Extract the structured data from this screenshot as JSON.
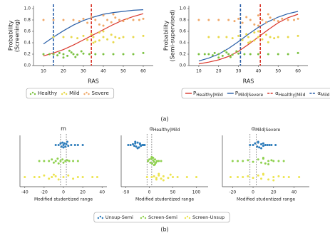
{
  "captions": [
    "(a)",
    "(b)"
  ],
  "shared_legend": [
    {
      "name": "Unsup-Semi",
      "color": "#2b7bba"
    },
    {
      "name": "Screen-Semi",
      "color": "#8fd14f"
    },
    {
      "name": "Screen-Unsup",
      "color": "#ece44f"
    }
  ],
  "chart_data": [
    {
      "type": "scatter",
      "xlabel": "RAS",
      "ylabel": [
        "Probability",
        "(Screening)"
      ],
      "xlim": [
        5,
        65
      ],
      "ylim": [
        0,
        1.05
      ],
      "xticks": [
        10,
        20,
        30,
        40,
        50,
        60
      ],
      "yticks": [
        {
          "value": 0,
          "label": "0.0"
        },
        {
          "value": 0.2,
          "label": "0.2"
        },
        {
          "value": 0.4,
          "label": "0.4"
        },
        {
          "value": 0.6,
          "label": "0.6"
        },
        {
          "value": 0.8,
          "label": "0.8"
        },
        {
          "value": 1,
          "label": "1.0"
        }
      ],
      "series": [
        {
          "type": "line",
          "color": "#d9372b",
          "x": [
            10,
            15,
            20,
            25,
            30,
            35,
            40,
            45,
            50,
            55,
            60
          ],
          "y": [
            0.17,
            0.22,
            0.28,
            0.36,
            0.45,
            0.54,
            0.63,
            0.72,
            0.8,
            0.86,
            0.91
          ]
        },
        {
          "type": "line",
          "color": "#2a5fa8",
          "x": [
            10,
            15,
            20,
            25,
            30,
            35,
            40,
            45,
            50,
            55,
            60
          ],
          "y": [
            0.38,
            0.5,
            0.61,
            0.71,
            0.79,
            0.85,
            0.9,
            0.93,
            0.95,
            0.97,
            0.98
          ]
        },
        {
          "name": "Healthy",
          "color": "#7cc242",
          "x": [
            10,
            13,
            15,
            17,
            18,
            20,
            22,
            24,
            25,
            27,
            30,
            33,
            36,
            40,
            45,
            50,
            55,
            60,
            20,
            23,
            26,
            29
          ],
          "y": [
            0.2,
            0.2,
            0.2,
            0.18,
            0.22,
            0.2,
            0.17,
            0.23,
            0.2,
            0.19,
            0.21,
            0.2,
            0.2,
            0.2,
            0.2,
            0.2,
            0.2,
            0.22,
            0.14,
            0.26,
            0.15,
            0.25
          ]
        },
        {
          "name": "Mild",
          "color": "#e8d84a",
          "x": [
            15,
            20,
            24,
            27,
            30,
            32,
            34,
            35,
            36,
            38,
            40,
            42,
            44,
            46,
            48,
            50,
            55,
            60,
            35,
            40,
            45,
            38
          ],
          "y": [
            0.5,
            0.5,
            0.5,
            0.48,
            0.52,
            0.45,
            0.55,
            0.5,
            0.42,
            0.58,
            0.5,
            0.46,
            0.54,
            0.5,
            0.48,
            0.5,
            0.5,
            0.52,
            0.4,
            0.6,
            0.41,
            0.44
          ]
        },
        {
          "name": "Severe",
          "color": "#f0a868",
          "x": [
            10,
            15,
            20,
            25,
            28,
            30,
            32,
            34,
            36,
            38,
            40,
            42,
            44,
            46,
            48,
            50,
            52,
            55,
            58,
            60,
            40,
            45
          ],
          "y": [
            0.8,
            0.8,
            0.8,
            0.8,
            0.78,
            0.82,
            0.75,
            0.85,
            0.8,
            0.72,
            0.88,
            0.8,
            0.76,
            0.84,
            0.8,
            0.78,
            0.82,
            0.8,
            0.8,
            0.82,
            0.7,
            0.9
          ]
        }
      ],
      "vlines": [
        {
          "x": 15,
          "color": "#2a5fa8"
        },
        {
          "x": 34,
          "color": "#d9372b"
        }
      ]
    },
    {
      "type": "scatter",
      "xlabel": "RAS",
      "ylabel": [
        "Probability",
        "(Semi-supervised)"
      ],
      "xlim": [
        5,
        65
      ],
      "ylim": [
        0,
        1.05
      ],
      "xticks": [
        10,
        20,
        30,
        40,
        50,
        60
      ],
      "yticks": [
        {
          "value": 0,
          "label": "0.0"
        },
        {
          "value": 0.2,
          "label": "0.2"
        },
        {
          "value": 0.4,
          "label": "0.4"
        },
        {
          "value": 0.6,
          "label": "0.6"
        },
        {
          "value": 0.8,
          "label": "0.8"
        },
        {
          "value": 1,
          "label": "1.0"
        }
      ],
      "series": [
        {
          "type": "line",
          "name": "P",
          "sub": "Healthy|Mild",
          "color": "#d9372b",
          "x": [
            10,
            15,
            20,
            25,
            30,
            35,
            40,
            45,
            50,
            55,
            60
          ],
          "y": [
            0.03,
            0.06,
            0.1,
            0.16,
            0.25,
            0.37,
            0.5,
            0.63,
            0.75,
            0.84,
            0.9
          ]
        },
        {
          "type": "line",
          "name": "P",
          "sub": "Mild|Severe",
          "color": "#2a5fa8",
          "x": [
            10,
            15,
            20,
            25,
            30,
            35,
            40,
            45,
            50,
            55,
            60
          ],
          "y": [
            0.08,
            0.13,
            0.2,
            0.3,
            0.42,
            0.55,
            0.67,
            0.77,
            0.85,
            0.91,
            0.95
          ]
        },
        {
          "color": "#7cc242",
          "x": [
            10,
            13,
            15,
            17,
            18,
            20,
            22,
            24,
            25,
            27,
            30,
            33,
            36,
            40,
            45,
            50,
            55,
            60,
            20,
            23,
            26,
            29
          ],
          "y": [
            0.2,
            0.2,
            0.2,
            0.18,
            0.22,
            0.2,
            0.17,
            0.23,
            0.2,
            0.19,
            0.21,
            0.2,
            0.2,
            0.2,
            0.2,
            0.2,
            0.2,
            0.22,
            0.14,
            0.26,
            0.15,
            0.25
          ]
        },
        {
          "color": "#e8d84a",
          "x": [
            15,
            20,
            24,
            27,
            30,
            32,
            34,
            35,
            36,
            38,
            40,
            42,
            44,
            46,
            48,
            50,
            55,
            60,
            35,
            40,
            45,
            38
          ],
          "y": [
            0.5,
            0.5,
            0.5,
            0.48,
            0.52,
            0.45,
            0.55,
            0.5,
            0.42,
            0.58,
            0.5,
            0.46,
            0.54,
            0.5,
            0.48,
            0.5,
            0.5,
            0.52,
            0.4,
            0.6,
            0.41,
            0.44
          ]
        },
        {
          "color": "#f0a868",
          "x": [
            10,
            15,
            20,
            25,
            28,
            30,
            32,
            34,
            36,
            38,
            40,
            42,
            44,
            46,
            48,
            50,
            52,
            55,
            58,
            60,
            40,
            45
          ],
          "y": [
            0.8,
            0.8,
            0.8,
            0.8,
            0.78,
            0.82,
            0.75,
            0.85,
            0.8,
            0.72,
            0.88,
            0.8,
            0.76,
            0.84,
            0.8,
            0.78,
            0.82,
            0.8,
            0.8,
            0.82,
            0.7,
            0.9
          ]
        }
      ],
      "vlines": [
        {
          "x": 41,
          "color": "#d9372b",
          "name": "α",
          "sub": "Healthy|Mild"
        },
        {
          "x": 31,
          "color": "#2a5fa8",
          "name": "α",
          "sub": "Mild|Severe"
        }
      ]
    },
    {
      "type": "scatter",
      "title": "m",
      "xlabel": "Modified studentized range",
      "xlim": [
        -45,
        45
      ],
      "ylim": [
        0.4,
        3.6
      ],
      "xticks": [
        -40,
        -20,
        0,
        20,
        40
      ],
      "series": [
        {
          "color": "#2b7bba",
          "x": [
            -5,
            -3,
            -2,
            -1,
            0,
            0,
            1,
            2,
            3,
            4,
            5,
            8,
            12,
            15,
            20,
            -8
          ],
          "y": [
            3,
            3.1,
            2.9,
            3.15,
            3,
            2.85,
            3.1,
            2.9,
            3.05,
            3.2,
            2.95,
            3,
            3,
            3,
            3,
            3
          ]
        },
        {
          "color": "#8fd14f",
          "x": [
            -20,
            -15,
            -12,
            -10,
            -8,
            -6,
            -5,
            -3,
            -1,
            0,
            2,
            4,
            6,
            10,
            15,
            -25
          ],
          "y": [
            2,
            2,
            2.1,
            1.9,
            2,
            2.15,
            1.85,
            2,
            2.1,
            1.9,
            2,
            2.05,
            2,
            2,
            2,
            2
          ]
        },
        {
          "color": "#ece44f",
          "x": [
            -40,
            -30,
            -25,
            -20,
            -15,
            -12,
            -10,
            -5,
            0,
            5,
            10,
            15,
            20,
            30,
            35,
            -8
          ],
          "y": [
            1,
            1,
            1,
            1.1,
            0.9,
            1,
            1.15,
            0.85,
            1,
            1.1,
            0.9,
            1,
            1,
            1,
            1,
            1.05
          ]
        }
      ],
      "vlines": [
        {
          "x": -3,
          "color": "#666"
        },
        {
          "x": 3,
          "color": "#666"
        }
      ]
    },
    {
      "type": "scatter",
      "title": "α",
      "title_sub": "Healthy|Mild",
      "xlabel": "Modified studentized range",
      "xlim": [
        -60,
        125
      ],
      "ylim": [
        0.4,
        3.6
      ],
      "xticks": [
        -50,
        0,
        50,
        100
      ],
      "series": [
        {
          "color": "#2b7bba",
          "x": [
            -45,
            -40,
            -35,
            -32,
            -30,
            -28,
            -25,
            -22,
            -20,
            -18,
            -15,
            -12,
            -10,
            -30,
            -25,
            -20
          ],
          "y": [
            3,
            3,
            3.05,
            2.95,
            3.1,
            2.9,
            3.15,
            2.85,
            3.05,
            2.95,
            3,
            3,
            3,
            3.2,
            2.8,
            3.1
          ]
        },
        {
          "color": "#8fd14f",
          "x": [
            -3,
            0,
            2,
            4,
            6,
            8,
            10,
            12,
            14,
            16,
            20,
            25,
            8,
            12,
            5,
            10
          ],
          "y": [
            2,
            2.1,
            1.9,
            2.15,
            1.85,
            2.05,
            1.95,
            2.1,
            1.9,
            2,
            2,
            2,
            2.2,
            1.8,
            2.25,
            1.75
          ]
        },
        {
          "color": "#ece44f",
          "x": [
            -5,
            5,
            10,
            15,
            20,
            25,
            30,
            40,
            50,
            60,
            80,
            100,
            20,
            30,
            45,
            15
          ],
          "y": [
            1,
            1,
            1.05,
            0.95,
            1.1,
            0.9,
            1.05,
            0.95,
            1,
            1,
            1,
            1,
            1.2,
            0.8,
            1.15,
            0.85
          ]
        }
      ],
      "vlines": [
        {
          "x": -5,
          "color": "#666"
        },
        {
          "x": 5,
          "color": "#666"
        }
      ]
    },
    {
      "type": "scatter",
      "title": "α",
      "title_sub": "Mild|Severe",
      "xlabel": "Modified studentized range",
      "xlim": [
        -30,
        55
      ],
      "ylim": [
        0.4,
        3.6
      ],
      "xticks": [
        -20,
        0,
        20,
        40
      ],
      "series": [
        {
          "color": "#2b7bba",
          "x": [
            -3,
            0,
            2,
            4,
            5,
            6,
            8,
            10,
            12,
            14,
            16,
            18,
            22,
            5,
            8,
            10
          ],
          "y": [
            3,
            3,
            3.1,
            2.9,
            3.15,
            2.85,
            3.05,
            2.95,
            3,
            3,
            3,
            3,
            3,
            3.2,
            2.8,
            3.1
          ]
        },
        {
          "color": "#8fd14f",
          "x": [
            -20,
            -15,
            -10,
            -5,
            0,
            5,
            8,
            10,
            12,
            15,
            18,
            20,
            25,
            30,
            10,
            15
          ],
          "y": [
            2,
            2,
            2,
            2.05,
            1.95,
            2.1,
            1.9,
            2.15,
            1.85,
            2,
            2.05,
            2,
            2,
            2,
            2.2,
            1.8
          ]
        },
        {
          "color": "#ece44f",
          "x": [
            -22,
            -15,
            -10,
            -5,
            0,
            5,
            8,
            10,
            15,
            20,
            25,
            30,
            35,
            45,
            10,
            20
          ],
          "y": [
            1,
            1,
            1,
            1.05,
            0.95,
            1.1,
            0.9,
            1.15,
            0.85,
            1,
            1.05,
            1,
            1,
            1,
            1.2,
            0.8
          ]
        }
      ],
      "vlines": [
        {
          "x": -3,
          "color": "#666"
        },
        {
          "x": 3,
          "color": "#666"
        }
      ]
    }
  ]
}
